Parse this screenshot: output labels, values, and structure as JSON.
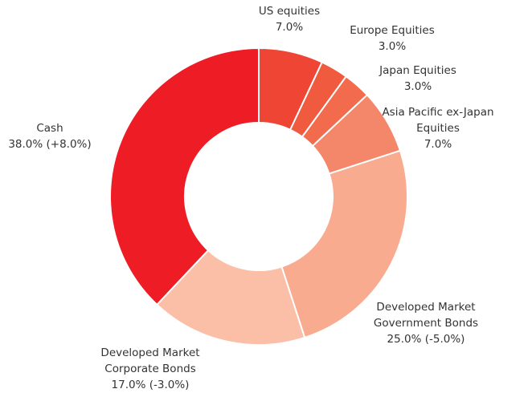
{
  "chart_data": {
    "type": "donut",
    "categories": [
      "US equities",
      "Europe Equities",
      "Japan Equities",
      "Asia Pacific ex-Japan Equities",
      "Developed Market Government Bonds",
      "Developed Market Corporate Bonds",
      "Cash"
    ],
    "values": [
      7,
      3,
      3,
      7,
      25,
      17,
      38
    ],
    "value_labels": [
      "7.0%",
      "3.0%",
      "3.0%",
      "7.0%",
      "25.0% (-5.0%)",
      "17.0% (-3.0%)",
      "38.0% (+8.0%)"
    ],
    "colors": [
      "#ef4535",
      "#f05a3f",
      "#f26b4d",
      "#f4876a",
      "#f9ab90",
      "#fbbfa8",
      "#ee1c25"
    ]
  }
}
